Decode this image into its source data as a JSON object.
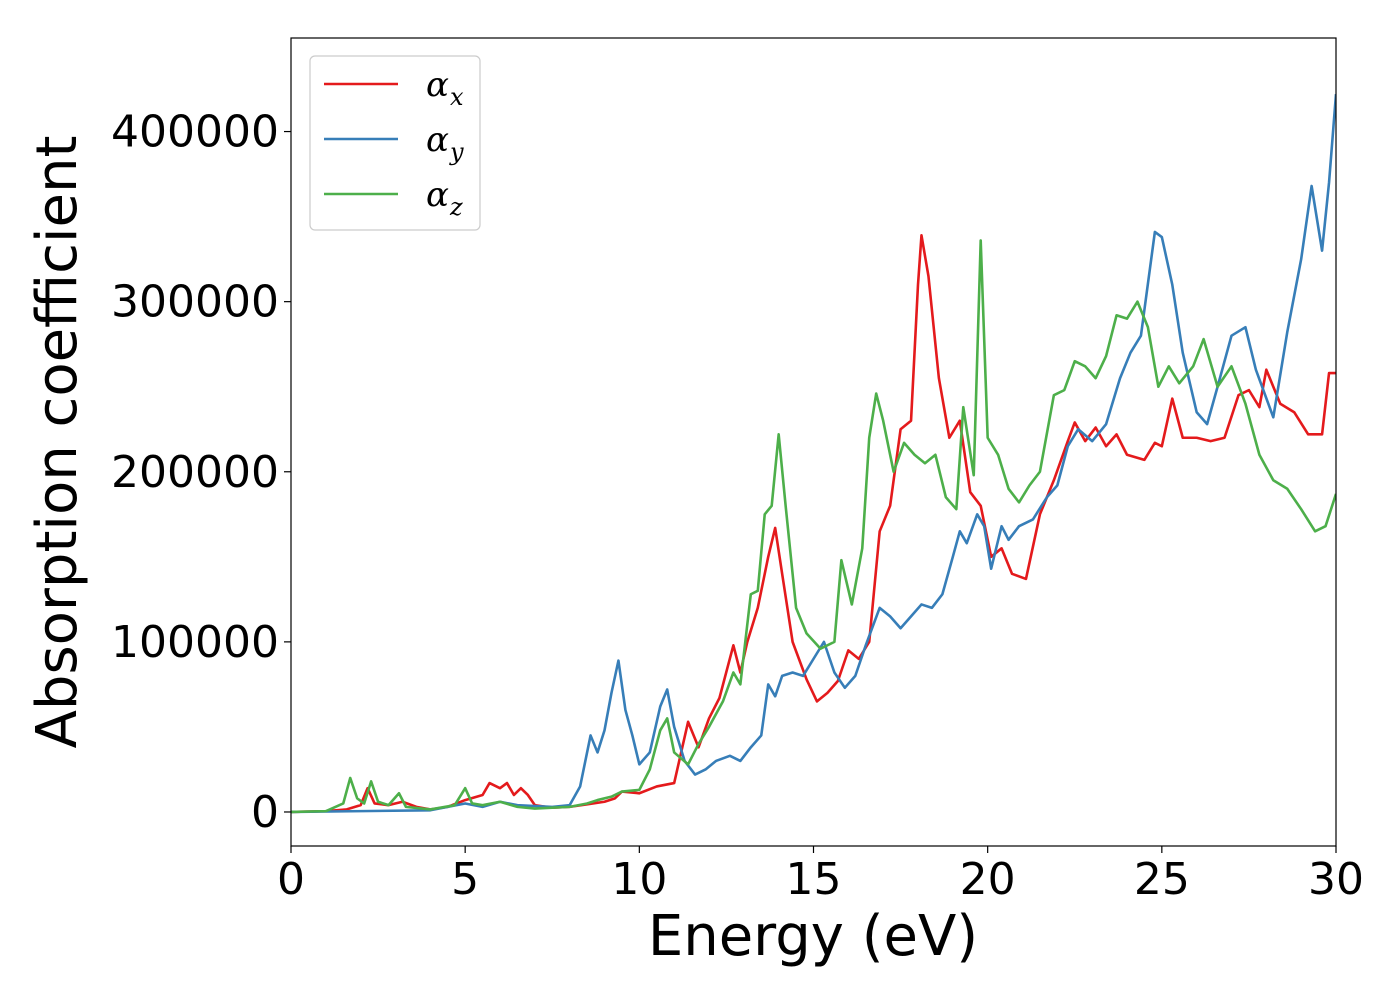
{
  "chart_data": {
    "type": "line",
    "title": "",
    "xlabel": "Energy (eV)",
    "ylabel": "Absorption coefficient",
    "xlim": [
      0,
      30
    ],
    "ylim": [
      -20000,
      455000
    ],
    "xticks": [
      0,
      5,
      10,
      15,
      20,
      25,
      30
    ],
    "yticks": [
      0,
      100000,
      200000,
      300000,
      400000
    ],
    "grid": false,
    "legend_position": "top-left",
    "series": [
      {
        "name": "αx",
        "base": "α",
        "sub": "x",
        "color": "#e41a1c",
        "points": [
          [
            0,
            0
          ],
          [
            1,
            500
          ],
          [
            1.6,
            1500
          ],
          [
            2,
            4000
          ],
          [
            2.2,
            14000
          ],
          [
            2.4,
            5000
          ],
          [
            2.8,
            4000
          ],
          [
            3.2,
            6000
          ],
          [
            3.6,
            3000
          ],
          [
            4,
            1500
          ],
          [
            4.5,
            3000
          ],
          [
            5,
            7000
          ],
          [
            5.5,
            10000
          ],
          [
            5.7,
            17000
          ],
          [
            6,
            14000
          ],
          [
            6.2,
            17000
          ],
          [
            6.4,
            10000
          ],
          [
            6.6,
            14000
          ],
          [
            6.8,
            10000
          ],
          [
            7,
            4000
          ],
          [
            7.5,
            2500
          ],
          [
            8,
            3000
          ],
          [
            8.5,
            4500
          ],
          [
            9,
            6000
          ],
          [
            9.3,
            8000
          ],
          [
            9.5,
            12000
          ],
          [
            10,
            11000
          ],
          [
            10.5,
            15000
          ],
          [
            11,
            17000
          ],
          [
            11.4,
            53000
          ],
          [
            11.7,
            38000
          ],
          [
            12,
            55000
          ],
          [
            12.3,
            67000
          ],
          [
            12.7,
            98000
          ],
          [
            12.9,
            82000
          ],
          [
            13.1,
            100000
          ],
          [
            13.4,
            120000
          ],
          [
            13.7,
            150000
          ],
          [
            13.9,
            167000
          ],
          [
            14.1,
            140000
          ],
          [
            14.4,
            100000
          ],
          [
            14.8,
            78000
          ],
          [
            15.1,
            65000
          ],
          [
            15.4,
            70000
          ],
          [
            15.7,
            77000
          ],
          [
            16,
            95000
          ],
          [
            16.3,
            90000
          ],
          [
            16.6,
            100000
          ],
          [
            16.9,
            165000
          ],
          [
            17.2,
            180000
          ],
          [
            17.5,
            225000
          ],
          [
            17.8,
            230000
          ],
          [
            18,
            310000
          ],
          [
            18.1,
            339000
          ],
          [
            18.3,
            315000
          ],
          [
            18.6,
            255000
          ],
          [
            18.9,
            220000
          ],
          [
            19.2,
            230000
          ],
          [
            19.5,
            188000
          ],
          [
            19.8,
            180000
          ],
          [
            20.1,
            150000
          ],
          [
            20.4,
            155000
          ],
          [
            20.7,
            140000
          ],
          [
            21.1,
            137000
          ],
          [
            21.5,
            175000
          ],
          [
            21.9,
            195000
          ],
          [
            22.3,
            218000
          ],
          [
            22.5,
            229000
          ],
          [
            22.8,
            218000
          ],
          [
            23.1,
            226000
          ],
          [
            23.4,
            215000
          ],
          [
            23.7,
            222000
          ],
          [
            24,
            210000
          ],
          [
            24.5,
            207000
          ],
          [
            24.8,
            217000
          ],
          [
            25,
            215000
          ],
          [
            25.3,
            243000
          ],
          [
            25.6,
            220000
          ],
          [
            26,
            220000
          ],
          [
            26.4,
            218000
          ],
          [
            26.8,
            220000
          ],
          [
            27.2,
            245000
          ],
          [
            27.5,
            248000
          ],
          [
            27.8,
            238000
          ],
          [
            28,
            260000
          ],
          [
            28.4,
            240000
          ],
          [
            28.8,
            235000
          ],
          [
            29.2,
            222000
          ],
          [
            29.6,
            222000
          ],
          [
            29.8,
            258000
          ],
          [
            30,
            258000
          ]
        ]
      },
      {
        "name": "αy",
        "base": "α",
        "sub": "y",
        "color": "#377eb8",
        "points": [
          [
            0,
            0
          ],
          [
            2,
            500
          ],
          [
            4,
            1000
          ],
          [
            5,
            5000
          ],
          [
            5.5,
            3000
          ],
          [
            6,
            6000
          ],
          [
            6.5,
            4000
          ],
          [
            7,
            3500
          ],
          [
            7.5,
            3000
          ],
          [
            8,
            4000
          ],
          [
            8.3,
            15000
          ],
          [
            8.6,
            45000
          ],
          [
            8.8,
            35000
          ],
          [
            9,
            48000
          ],
          [
            9.2,
            70000
          ],
          [
            9.4,
            89000
          ],
          [
            9.6,
            60000
          ],
          [
            9.8,
            45000
          ],
          [
            10,
            28000
          ],
          [
            10.3,
            35000
          ],
          [
            10.6,
            62000
          ],
          [
            10.8,
            72000
          ],
          [
            11,
            50000
          ],
          [
            11.3,
            30000
          ],
          [
            11.6,
            22000
          ],
          [
            11.9,
            25000
          ],
          [
            12.2,
            30000
          ],
          [
            12.6,
            33000
          ],
          [
            12.9,
            30000
          ],
          [
            13.2,
            38000
          ],
          [
            13.5,
            45000
          ],
          [
            13.7,
            75000
          ],
          [
            13.9,
            68000
          ],
          [
            14.1,
            80000
          ],
          [
            14.4,
            82000
          ],
          [
            14.7,
            80000
          ],
          [
            15,
            90000
          ],
          [
            15.3,
            100000
          ],
          [
            15.6,
            82000
          ],
          [
            15.9,
            73000
          ],
          [
            16.2,
            80000
          ],
          [
            16.5,
            98000
          ],
          [
            16.9,
            120000
          ],
          [
            17.2,
            115000
          ],
          [
            17.5,
            108000
          ],
          [
            17.8,
            115000
          ],
          [
            18.1,
            122000
          ],
          [
            18.4,
            120000
          ],
          [
            18.7,
            128000
          ],
          [
            19,
            150000
          ],
          [
            19.2,
            165000
          ],
          [
            19.4,
            158000
          ],
          [
            19.7,
            175000
          ],
          [
            19.9,
            168000
          ],
          [
            20.1,
            143000
          ],
          [
            20.4,
            168000
          ],
          [
            20.6,
            160000
          ],
          [
            20.9,
            168000
          ],
          [
            21.3,
            172000
          ],
          [
            21.7,
            185000
          ],
          [
            22,
            192000
          ],
          [
            22.3,
            215000
          ],
          [
            22.6,
            225000
          ],
          [
            23,
            218000
          ],
          [
            23.4,
            228000
          ],
          [
            23.8,
            255000
          ],
          [
            24.1,
            270000
          ],
          [
            24.4,
            280000
          ],
          [
            24.8,
            341000
          ],
          [
            25,
            338000
          ],
          [
            25.3,
            310000
          ],
          [
            25.6,
            270000
          ],
          [
            26,
            235000
          ],
          [
            26.3,
            228000
          ],
          [
            26.6,
            250000
          ],
          [
            27,
            280000
          ],
          [
            27.4,
            285000
          ],
          [
            27.7,
            260000
          ],
          [
            28.2,
            232000
          ],
          [
            28.6,
            282000
          ],
          [
            29,
            325000
          ],
          [
            29.3,
            368000
          ],
          [
            29.6,
            330000
          ],
          [
            29.8,
            370000
          ],
          [
            30,
            422000
          ]
        ]
      },
      {
        "name": "αz",
        "base": "α",
        "sub": "z",
        "color": "#4daf4a",
        "points": [
          [
            0,
            0
          ],
          [
            1,
            500
          ],
          [
            1.5,
            5000
          ],
          [
            1.7,
            20000
          ],
          [
            1.9,
            8000
          ],
          [
            2.1,
            5000
          ],
          [
            2.3,
            18000
          ],
          [
            2.5,
            6000
          ],
          [
            2.8,
            4000
          ],
          [
            3.1,
            11000
          ],
          [
            3.3,
            3000
          ],
          [
            4,
            1500
          ],
          [
            4.7,
            4000
          ],
          [
            5,
            14000
          ],
          [
            5.2,
            5000
          ],
          [
            5.5,
            4000
          ],
          [
            6,
            6000
          ],
          [
            6.5,
            3000
          ],
          [
            7,
            2000
          ],
          [
            7.5,
            2500
          ],
          [
            8,
            3000
          ],
          [
            8.5,
            5000
          ],
          [
            8.8,
            7000
          ],
          [
            9.2,
            9000
          ],
          [
            9.5,
            12000
          ],
          [
            10,
            13000
          ],
          [
            10.3,
            25000
          ],
          [
            10.6,
            48000
          ],
          [
            10.8,
            55000
          ],
          [
            11,
            35000
          ],
          [
            11.4,
            28000
          ],
          [
            11.7,
            40000
          ],
          [
            12,
            50000
          ],
          [
            12.4,
            65000
          ],
          [
            12.7,
            82000
          ],
          [
            12.9,
            75000
          ],
          [
            13.2,
            128000
          ],
          [
            13.4,
            130000
          ],
          [
            13.6,
            175000
          ],
          [
            13.8,
            180000
          ],
          [
            14,
            222000
          ],
          [
            14.2,
            180000
          ],
          [
            14.5,
            120000
          ],
          [
            14.8,
            105000
          ],
          [
            15.2,
            96000
          ],
          [
            15.6,
            100000
          ],
          [
            15.8,
            148000
          ],
          [
            16.1,
            122000
          ],
          [
            16.4,
            155000
          ],
          [
            16.6,
            220000
          ],
          [
            16.8,
            246000
          ],
          [
            17,
            230000
          ],
          [
            17.3,
            200000
          ],
          [
            17.6,
            217000
          ],
          [
            17.9,
            210000
          ],
          [
            18.2,
            205000
          ],
          [
            18.5,
            210000
          ],
          [
            18.8,
            185000
          ],
          [
            19.1,
            178000
          ],
          [
            19.3,
            238000
          ],
          [
            19.6,
            198000
          ],
          [
            19.8,
            336000
          ],
          [
            20,
            220000
          ],
          [
            20.3,
            210000
          ],
          [
            20.6,
            190000
          ],
          [
            20.9,
            182000
          ],
          [
            21.2,
            192000
          ],
          [
            21.5,
            200000
          ],
          [
            21.9,
            245000
          ],
          [
            22.2,
            248000
          ],
          [
            22.5,
            265000
          ],
          [
            22.8,
            262000
          ],
          [
            23.1,
            255000
          ],
          [
            23.4,
            268000
          ],
          [
            23.7,
            292000
          ],
          [
            24,
            290000
          ],
          [
            24.3,
            300000
          ],
          [
            24.6,
            285000
          ],
          [
            24.9,
            250000
          ],
          [
            25.2,
            262000
          ],
          [
            25.5,
            252000
          ],
          [
            25.9,
            262000
          ],
          [
            26.2,
            278000
          ],
          [
            26.6,
            250000
          ],
          [
            27,
            262000
          ],
          [
            27.4,
            240000
          ],
          [
            27.8,
            210000
          ],
          [
            28.2,
            195000
          ],
          [
            28.6,
            190000
          ],
          [
            29,
            178000
          ],
          [
            29.4,
            165000
          ],
          [
            29.7,
            168000
          ],
          [
            30,
            187000
          ]
        ]
      }
    ]
  }
}
